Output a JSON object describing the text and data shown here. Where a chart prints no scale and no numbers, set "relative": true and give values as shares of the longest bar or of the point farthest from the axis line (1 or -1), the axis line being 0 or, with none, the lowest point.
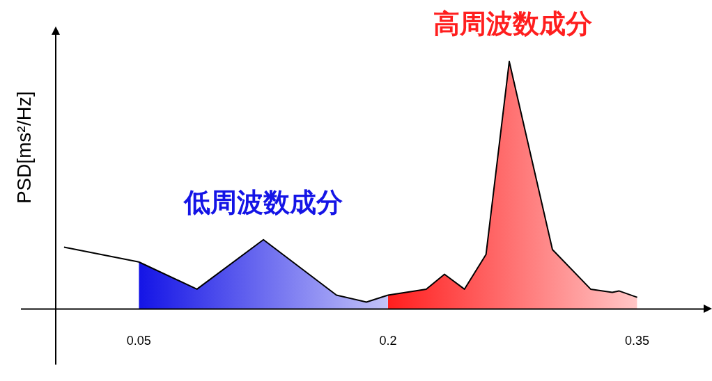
{
  "chart_data": {
    "type": "area",
    "relative": true,
    "ylabel": "PSD[ms²/Hz]",
    "xlim": [
      0,
      0.39
    ],
    "xticks": [
      0.05,
      0.2,
      0.35
    ],
    "grid": false,
    "legend": false,
    "marker": "none",
    "series": [
      {
        "type": "line",
        "color": "#000000",
        "x": [
          0.005,
          0.05
        ],
        "values": [
          0.25,
          0.19
        ]
      },
      {
        "name": "低周波数成分",
        "color": "#1414e6",
        "x": [
          0.05,
          0.085,
          0.125,
          0.169,
          0.187,
          0.2
        ],
        "values": [
          0.19,
          0.08,
          0.28,
          0.056,
          0.028,
          0.056
        ]
      },
      {
        "name": "高周波数成分",
        "color": "#ff1e1e",
        "x": [
          0.2,
          0.223,
          0.234,
          0.246,
          0.259,
          0.273,
          0.299,
          0.322,
          0.335,
          0.339,
          0.35
        ],
        "values": [
          0.056,
          0.08,
          0.14,
          0.08,
          0.22,
          1,
          0.24,
          0.08,
          0.067,
          0.073,
          0.047
        ]
      }
    ]
  }
}
